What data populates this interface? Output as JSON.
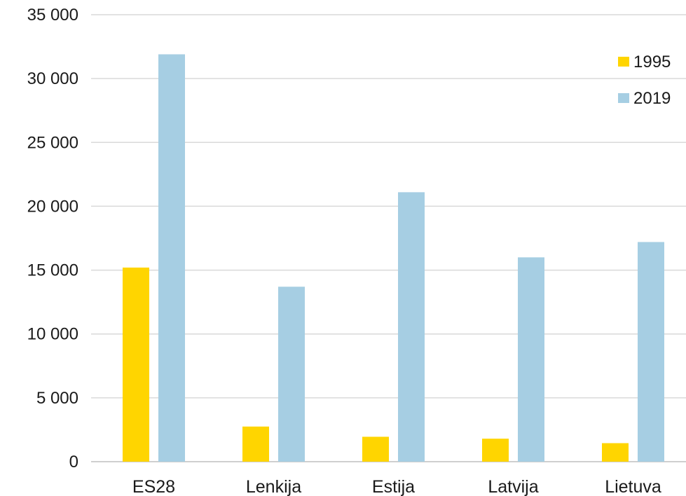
{
  "chart_data": {
    "type": "bar",
    "title": "",
    "xlabel": "",
    "ylabel": "",
    "categories": [
      "ES28",
      "Lenkija",
      "Estija",
      "Latvija",
      "Lietuva"
    ],
    "series": [
      {
        "name": "1995",
        "color": "#FFD500",
        "values": [
          15200,
          2750,
          1950,
          1800,
          1450
        ]
      },
      {
        "name": "2019",
        "color": "#A6CEE3",
        "values": [
          31900,
          13700,
          21100,
          16000,
          17200
        ]
      }
    ],
    "ylim": [
      0,
      35000
    ],
    "yticks": [
      0,
      5000,
      10000,
      15000,
      20000,
      25000,
      30000,
      35000
    ],
    "ytick_labels": [
      "0",
      "5 000",
      "10 000",
      "15 000",
      "20 000",
      "25 000",
      "30 000",
      "35 000"
    ],
    "grid": true,
    "legend_position": "top-right"
  }
}
